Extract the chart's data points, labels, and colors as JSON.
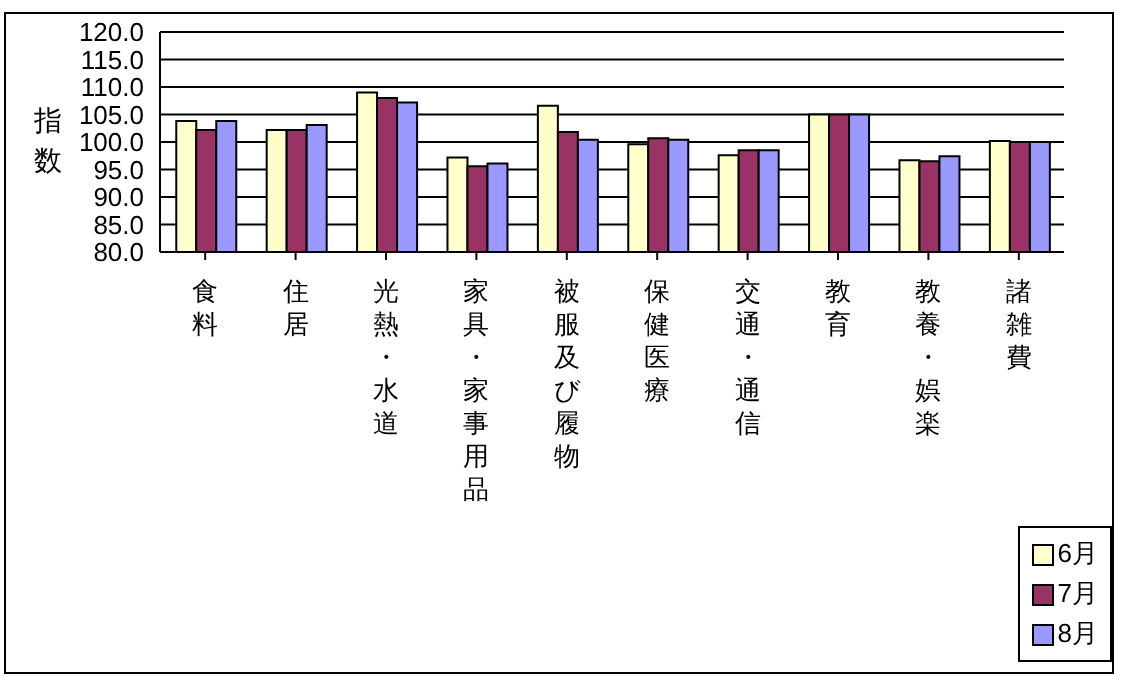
{
  "chart_data": {
    "type": "bar",
    "ylabel": "指数",
    "categories": [
      "食料",
      "住居",
      "光熱・水道",
      "家具・家事用品",
      "被服及び履物",
      "保健医療",
      "交通・通信",
      "教育",
      "教養・娯楽",
      "諸雑費"
    ],
    "series": [
      {
        "name": "6月",
        "color": "#ffffcc",
        "values": [
          103.8,
          102.2,
          109.0,
          97.2,
          106.6,
          99.6,
          97.6,
          105.0,
          96.7,
          100.2
        ]
      },
      {
        "name": "7月",
        "color": "#993366",
        "values": [
          102.2,
          102.2,
          108.0,
          95.6,
          101.8,
          100.7,
          98.5,
          105.0,
          96.5,
          100.0
        ]
      },
      {
        "name": "8月",
        "color": "#9999ff",
        "values": [
          103.8,
          103.1,
          107.2,
          96.1,
          100.4,
          100.4,
          98.5,
          105.0,
          97.4,
          100.0
        ]
      }
    ],
    "ylim": [
      80,
      120
    ],
    "yticks": [
      {
        "value": 80,
        "label": "80.0"
      },
      {
        "value": 85,
        "label": "85.0"
      },
      {
        "value": 90,
        "label": "90.0"
      },
      {
        "value": 95,
        "label": "95.0"
      },
      {
        "value": 100,
        "label": "100.0"
      },
      {
        "value": 105,
        "label": "105.0"
      },
      {
        "value": 110,
        "label": "110.0"
      },
      {
        "value": 115,
        "label": "115.0"
      },
      {
        "value": 120,
        "label": "120.0"
      }
    ],
    "grid": "y",
    "legend": "bottom right"
  }
}
